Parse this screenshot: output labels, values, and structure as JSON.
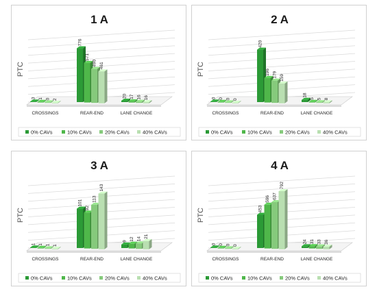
{
  "colors": [
    "#2b9a36",
    "#4fb74a",
    "#86ca7c",
    "#b9dfb1"
  ],
  "chart_data": [
    {
      "type": "bar",
      "title": "1 A",
      "ylabel": "PTC",
      "categories": [
        "CROSSINGS",
        "REAR-END",
        "LANE CHANGE"
      ],
      "series": [
        {
          "name": "0% CAVs",
          "values": [
            3,
            776,
            20
          ]
        },
        {
          "name": "10% CAVs",
          "values": [
            1,
            571,
            17
          ]
        },
        {
          "name": "20% CAVs",
          "values": [
            0,
            490,
            16
          ]
        },
        {
          "name": "40% CAVs",
          "values": [
            2,
            461,
            16
          ]
        }
      ],
      "ylim": [
        0,
        900
      ],
      "legend": "bottom",
      "grid": true
    },
    {
      "type": "bar",
      "title": "2 A",
      "ylabel": "PTC",
      "categories": [
        "CROSSINGS",
        "REAR-END",
        "LANE CHANGE"
      ],
      "series": [
        {
          "name": "0% CAVs",
          "values": [
            0,
            420,
            18
          ]
        },
        {
          "name": "10% CAVs",
          "values": [
            0,
            196,
            5
          ]
        },
        {
          "name": "20% CAVs",
          "values": [
            0,
            179,
            5
          ]
        },
        {
          "name": "40% CAVs",
          "values": [
            0,
            159,
            8
          ]
        }
      ],
      "ylim": [
        0,
        500
      ],
      "legend": "bottom",
      "grid": true
    },
    {
      "type": "bar",
      "title": "3 A",
      "ylabel": "PTC",
      "categories": [
        "CROSSINGS",
        "REAR-END",
        "LANE CHANGE"
      ],
      "series": [
        {
          "name": "0% CAVs",
          "values": [
            1,
            101,
            9
          ]
        },
        {
          "name": "10% CAVs",
          "values": [
            1,
            92,
            12
          ]
        },
        {
          "name": "20% CAVs",
          "values": [
            1,
            113,
            14
          ]
        },
        {
          "name": "40% CAVs",
          "values": [
            1,
            143,
            21
          ]
        }
      ],
      "ylim": [
        0,
        160
      ],
      "legend": "bottom",
      "grid": true
    },
    {
      "type": "bar",
      "title": "4 A",
      "ylabel": "PTC",
      "categories": [
        "CROSSINGS",
        "REAR-END",
        "LANE CHANGE"
      ],
      "series": [
        {
          "name": "0% CAVs",
          "values": [
            0,
            453,
            24
          ]
        },
        {
          "name": "10% CAVs",
          "values": [
            0,
            596,
            31
          ]
        },
        {
          "name": "20% CAVs",
          "values": [
            0,
            637,
            33
          ]
        },
        {
          "name": "40% CAVs",
          "values": [
            0,
            792,
            36
          ]
        }
      ],
      "ylim": [
        0,
        850
      ],
      "legend": "bottom",
      "grid": true
    }
  ]
}
